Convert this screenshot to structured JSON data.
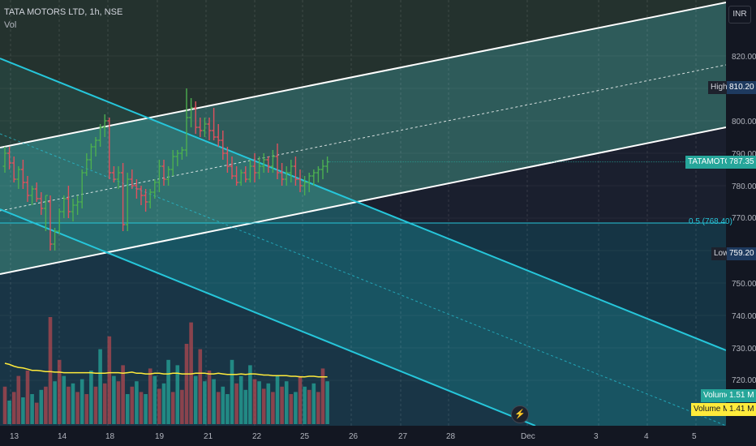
{
  "header": {
    "symbol": "TATA MOTORS LTD, 1h, NSE",
    "vol_label": "Vol"
  },
  "currency_button": "INR",
  "y_axis": {
    "ticks": [
      "820.00",
      "800.00",
      "790.00",
      "780.00",
      "770.00",
      "750.00",
      "740.00",
      "730.00",
      "720.00"
    ]
  },
  "x_axis": {
    "ticks": [
      "13",
      "14",
      "18",
      "19",
      "21",
      "22",
      "25",
      "26",
      "27",
      "28",
      "Dec",
      "3",
      "4",
      "5"
    ]
  },
  "price_labels": {
    "high_name": "High",
    "high_value": "810.20",
    "last_name": "TATAMOTORS",
    "last_value": "787.35",
    "fib_text": "0.5 (768.40)",
    "low_name": "Low",
    "low_value": "759.20",
    "vol_name": "Volume",
    "vol_value": "1.51 M",
    "volma_name": "Volume MA",
    "volma_value": "1.41 M"
  },
  "colors": {
    "up": "#4caf50",
    "down": "#e0515e",
    "channel_line": "#ffffff",
    "down_channel_line": "#26c6da",
    "fib_line": "#26c6da",
    "vol_ma": "#ffeb3b"
  },
  "chart_data": {
    "type": "ohlc",
    "price_range": [
      715,
      832
    ],
    "high": 810.2,
    "low": 759.2,
    "last": 787.35,
    "fib_0_5": 768.4,
    "candles": [
      [
        786,
        792,
        784,
        790
      ],
      [
        790,
        792,
        785,
        787
      ],
      [
        787,
        789,
        781,
        782
      ],
      [
        782,
        786,
        779,
        785
      ],
      [
        785,
        788,
        779,
        781
      ],
      [
        781,
        783,
        775,
        777
      ],
      [
        777,
        780,
        774,
        779
      ],
      [
        779,
        781,
        775,
        776
      ],
      [
        776,
        778,
        771,
        773
      ],
      [
        773,
        777,
        766,
        777
      ],
      [
        775,
        777,
        760,
        762
      ],
      [
        762,
        767,
        760,
        766
      ],
      [
        766,
        773,
        765,
        772
      ],
      [
        772,
        777,
        770,
        776
      ],
      [
        776,
        780,
        770,
        772
      ],
      [
        772,
        776,
        769,
        774
      ],
      [
        774,
        777,
        771,
        775
      ],
      [
        775,
        785,
        773,
        784
      ],
      [
        784,
        790,
        783,
        788
      ],
      [
        788,
        793,
        785,
        792
      ],
      [
        792,
        795,
        789,
        794
      ],
      [
        794,
        799,
        792,
        798
      ],
      [
        798,
        802,
        795,
        800
      ],
      [
        800,
        801,
        782,
        784
      ],
      [
        784,
        786,
        781,
        782
      ],
      [
        782,
        786,
        779,
        784
      ],
      [
        784,
        787,
        766,
        768
      ],
      [
        768,
        784,
        766,
        782
      ],
      [
        782,
        785,
        779,
        780
      ],
      [
        780,
        782,
        776,
        779
      ],
      [
        779,
        780,
        774,
        777
      ],
      [
        777,
        779,
        772,
        775
      ],
      [
        775,
        779,
        773,
        778
      ],
      [
        778,
        782,
        776,
        781
      ],
      [
        781,
        788,
        778,
        786
      ],
      [
        786,
        788,
        780,
        782
      ],
      [
        782,
        786,
        780,
        785
      ],
      [
        785,
        791,
        783,
        789
      ],
      [
        789,
        791,
        786,
        790
      ],
      [
        790,
        792,
        788,
        791
      ],
      [
        791,
        810,
        789,
        801
      ],
      [
        801,
        807,
        798,
        804
      ],
      [
        804,
        806,
        796,
        798
      ],
      [
        798,
        801,
        795,
        797
      ],
      [
        797,
        801,
        795,
        799
      ],
      [
        799,
        801,
        794,
        797
      ],
      [
        797,
        804,
        794,
        795
      ],
      [
        795,
        799,
        792,
        794
      ],
      [
        794,
        797,
        788,
        790
      ],
      [
        790,
        792,
        784,
        786
      ],
      [
        786,
        789,
        782,
        783
      ],
      [
        783,
        786,
        780,
        781
      ],
      [
        781,
        785,
        780,
        784
      ],
      [
        784,
        786,
        781,
        782
      ],
      [
        782,
        788,
        781,
        786
      ],
      [
        786,
        790,
        781,
        784
      ],
      [
        784,
        789,
        782,
        786
      ],
      [
        786,
        790,
        784,
        788
      ],
      [
        788,
        789,
        784,
        786
      ],
      [
        786,
        791,
        784,
        789
      ],
      [
        789,
        793,
        782,
        784
      ],
      [
        784,
        787,
        780,
        782
      ],
      [
        782,
        786,
        780,
        784
      ],
      [
        784,
        788,
        781,
        786
      ],
      [
        786,
        789,
        780,
        782
      ],
      [
        782,
        785,
        778,
        780
      ],
      [
        780,
        783,
        777,
        781
      ],
      [
        781,
        784,
        778,
        783
      ],
      [
        783,
        785,
        780,
        784
      ],
      [
        784,
        786,
        781,
        785
      ],
      [
        785,
        788,
        782,
        786
      ],
      [
        786,
        789,
        784,
        787.35
      ]
    ],
    "volume_units": "relative",
    "volumes": [
      [
        0.35,
        "down"
      ],
      [
        0.22,
        "up"
      ],
      [
        0.3,
        "down"
      ],
      [
        0.45,
        "down"
      ],
      [
        0.25,
        "up"
      ],
      [
        0.5,
        "down"
      ],
      [
        0.28,
        "up"
      ],
      [
        0.2,
        "down"
      ],
      [
        0.32,
        "up"
      ],
      [
        0.35,
        "down"
      ],
      [
        1.0,
        "down"
      ],
      [
        0.4,
        "up"
      ],
      [
        0.6,
        "down"
      ],
      [
        0.45,
        "up"
      ],
      [
        0.35,
        "down"
      ],
      [
        0.38,
        "up"
      ],
      [
        0.3,
        "down"
      ],
      [
        0.42,
        "up"
      ],
      [
        0.28,
        "down"
      ],
      [
        0.5,
        "up"
      ],
      [
        0.35,
        "down"
      ],
      [
        0.7,
        "up"
      ],
      [
        0.38,
        "down"
      ],
      [
        0.82,
        "down"
      ],
      [
        0.45,
        "up"
      ],
      [
        0.4,
        "down"
      ],
      [
        0.55,
        "down"
      ],
      [
        0.28,
        "up"
      ],
      [
        0.35,
        "down"
      ],
      [
        0.4,
        "up"
      ],
      [
        0.3,
        "down"
      ],
      [
        0.28,
        "up"
      ],
      [
        0.52,
        "down"
      ],
      [
        0.45,
        "up"
      ],
      [
        0.33,
        "down"
      ],
      [
        0.38,
        "up"
      ],
      [
        0.6,
        "up"
      ],
      [
        0.3,
        "down"
      ],
      [
        0.55,
        "up"
      ],
      [
        0.32,
        "down"
      ],
      [
        0.75,
        "down"
      ],
      [
        0.95,
        "down"
      ],
      [
        0.45,
        "up"
      ],
      [
        0.7,
        "down"
      ],
      [
        0.4,
        "up"
      ],
      [
        0.5,
        "down"
      ],
      [
        0.42,
        "up"
      ],
      [
        0.3,
        "down"
      ],
      [
        0.35,
        "up"
      ],
      [
        0.28,
        "up"
      ],
      [
        0.6,
        "up"
      ],
      [
        0.38,
        "down"
      ],
      [
        0.45,
        "up"
      ],
      [
        0.32,
        "up"
      ],
      [
        0.55,
        "up"
      ],
      [
        0.42,
        "down"
      ],
      [
        0.4,
        "up"
      ],
      [
        0.33,
        "down"
      ],
      [
        0.38,
        "up"
      ],
      [
        0.3,
        "down"
      ],
      [
        0.45,
        "up"
      ],
      [
        0.35,
        "down"
      ],
      [
        0.4,
        "up"
      ],
      [
        0.28,
        "down"
      ],
      [
        0.3,
        "up"
      ],
      [
        0.45,
        "down"
      ],
      [
        0.35,
        "up"
      ],
      [
        0.32,
        "down"
      ],
      [
        0.38,
        "up"
      ],
      [
        0.3,
        "down"
      ],
      [
        0.52,
        "down"
      ],
      [
        0.4,
        "up"
      ]
    ],
    "volume_ma_trend": [
      0.62,
      0.6,
      0.57,
      0.55,
      0.54,
      0.52,
      0.5,
      0.5,
      0.49,
      0.48,
      0.48,
      0.47,
      0.47,
      0.46,
      0.46,
      0.46,
      0.46,
      0.46,
      0.46,
      0.46,
      0.45,
      0.45,
      0.45,
      0.46,
      0.46,
      0.46,
      0.45,
      0.46,
      0.47,
      0.45,
      0.45,
      0.44,
      0.44,
      0.45,
      0.45,
      0.44,
      0.44,
      0.45,
      0.45,
      0.44,
      0.44,
      0.44,
      0.45,
      0.45,
      0.45,
      0.44,
      0.44,
      0.45,
      0.44,
      0.43,
      0.43,
      0.43,
      0.44,
      0.43,
      0.44,
      0.44,
      0.43,
      0.42,
      0.42,
      0.41,
      0.41,
      0.41,
      0.41,
      0.4,
      0.4,
      0.39,
      0.39,
      0.4,
      0.4,
      0.39,
      0.39,
      0.39
    ]
  }
}
